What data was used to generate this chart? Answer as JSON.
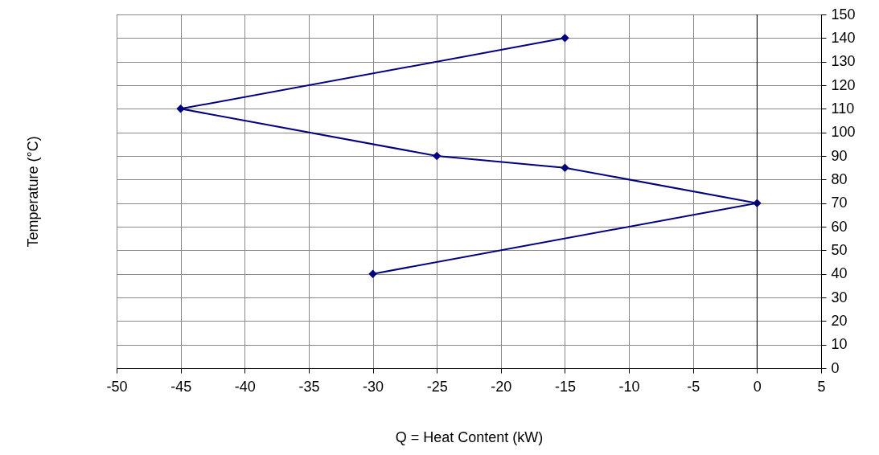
{
  "chart_data": {
    "type": "line",
    "xlabel": "Q = Heat Content (kW)",
    "ylabel": "Temperature (°C)",
    "x": [
      -15,
      -45,
      -25,
      -15,
      0,
      -30
    ],
    "series": [
      {
        "color": "#000080",
        "values": [
          140,
          110,
          90,
          85,
          70,
          40
        ]
      }
    ],
    "xlim": [
      -50,
      5
    ],
    "xticks": [
      -50,
      -45,
      -40,
      -35,
      -30,
      -25,
      -20,
      -15,
      -10,
      -5,
      0,
      5
    ],
    "ylim": [
      0,
      150
    ],
    "yticks": [
      0,
      10,
      20,
      30,
      40,
      50,
      60,
      70,
      80,
      90,
      100,
      110,
      120,
      130,
      140,
      150
    ],
    "ref_lines": [
      {
        "axis": "x",
        "value": 0,
        "color": "#000000"
      }
    ],
    "grid": true,
    "marker": "diamond",
    "line_style": "solid"
  }
}
